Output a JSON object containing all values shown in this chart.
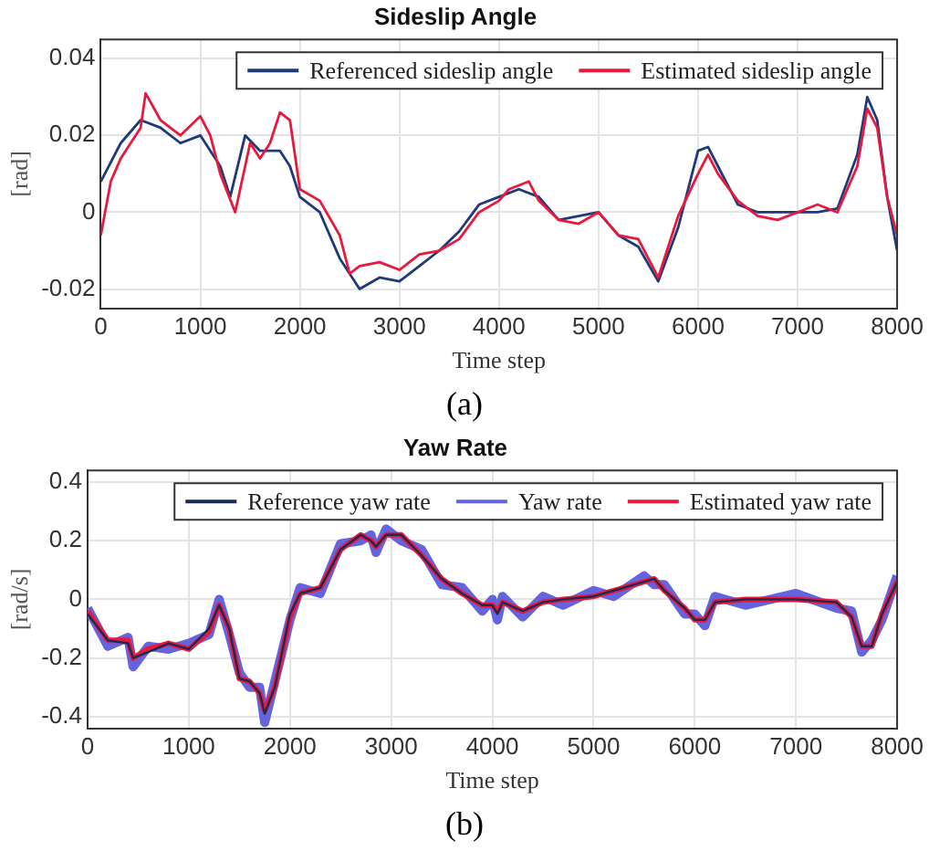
{
  "chart_data": [
    {
      "type": "line",
      "title": "Sideslip Angle",
      "xlabel": "Time step",
      "ylabel": "[rad]",
      "xlim": [
        0,
        8000
      ],
      "xticks": [
        0,
        1000,
        2000,
        3000,
        4000,
        5000,
        6000,
        7000,
        8000
      ],
      "ylim": [
        -0.025,
        0.045
      ],
      "yticks": [
        -0.02,
        0,
        0.02,
        0.04
      ],
      "grid": true,
      "legend": "top right",
      "line_style": "solid",
      "marker": "none",
      "annotations": [
        "(a)"
      ],
      "series": [
        {
          "name": "Referenced sideslip angle",
          "color": "#1f3a7a",
          "x": [
            0,
            200,
            400,
            600,
            800,
            1000,
            1200,
            1300,
            1450,
            1600,
            1800,
            1900,
            2000,
            2200,
            2400,
            2600,
            2800,
            3000,
            3200,
            3400,
            3600,
            3800,
            4000,
            4200,
            4400,
            4600,
            4800,
            5000,
            5200,
            5400,
            5600,
            5800,
            6000,
            6100,
            6200,
            6400,
            6600,
            6800,
            7000,
            7200,
            7400,
            7600,
            7700,
            7800,
            7900,
            8000
          ],
          "values": [
            0.008,
            0.018,
            0.024,
            0.022,
            0.018,
            0.02,
            0.012,
            0.004,
            0.02,
            0.016,
            0.016,
            0.012,
            0.004,
            0.0,
            -0.012,
            -0.02,
            -0.017,
            -0.018,
            -0.014,
            -0.01,
            -0.005,
            0.002,
            0.004,
            0.006,
            0.004,
            -0.002,
            -0.001,
            0.0,
            -0.006,
            -0.009,
            -0.018,
            -0.004,
            0.016,
            0.017,
            0.012,
            0.002,
            0.0,
            0.0,
            0.0,
            0.0,
            0.001,
            0.015,
            0.03,
            0.024,
            0.004,
            -0.01
          ]
        },
        {
          "name": "Estimated sideslip angle",
          "color": "#e8193c",
          "x": [
            0,
            100,
            200,
            400,
            450,
            600,
            800,
            1000,
            1100,
            1200,
            1350,
            1500,
            1600,
            1700,
            1800,
            1900,
            2000,
            2200,
            2400,
            2500,
            2600,
            2800,
            3000,
            3200,
            3400,
            3600,
            3800,
            4000,
            4100,
            4300,
            4400,
            4600,
            4800,
            5000,
            5200,
            5400,
            5600,
            5800,
            6000,
            6100,
            6200,
            6400,
            6600,
            6800,
            7000,
            7200,
            7400,
            7600,
            7700,
            7800,
            7900,
            8000
          ],
          "values": [
            -0.006,
            0.008,
            0.014,
            0.022,
            0.031,
            0.024,
            0.02,
            0.025,
            0.02,
            0.01,
            0.0,
            0.018,
            0.014,
            0.018,
            0.026,
            0.024,
            0.006,
            0.003,
            -0.006,
            -0.016,
            -0.014,
            -0.013,
            -0.015,
            -0.011,
            -0.01,
            -0.007,
            0.0,
            0.003,
            0.006,
            0.008,
            0.003,
            -0.002,
            -0.003,
            0.0,
            -0.006,
            -0.007,
            -0.017,
            -0.001,
            0.01,
            0.015,
            0.01,
            0.003,
            -0.001,
            -0.002,
            0.0,
            0.002,
            0.0,
            0.012,
            0.027,
            0.022,
            0.004,
            -0.006
          ]
        }
      ]
    },
    {
      "type": "line",
      "title": "Yaw Rate",
      "xlabel": "Time step",
      "ylabel": "[rad/s]",
      "xlim": [
        0,
        8000
      ],
      "xticks": [
        0,
        1000,
        2000,
        3000,
        4000,
        5000,
        6000,
        7000,
        8000
      ],
      "ylim": [
        -0.44,
        0.44
      ],
      "yticks": [
        -0.4,
        -0.2,
        0,
        0.2,
        0.4
      ],
      "grid": true,
      "legend": "top right",
      "line_style": "solid",
      "marker": "none",
      "annotations": [
        "(b)"
      ],
      "series": [
        {
          "name": "Reference yaw rate",
          "color": "#1a2a50",
          "x": [
            0,
            200,
            400,
            450,
            600,
            800,
            1000,
            1200,
            1300,
            1400,
            1500,
            1600,
            1700,
            1750,
            1850,
            2000,
            2100,
            2300,
            2500,
            2700,
            2800,
            2850,
            2950,
            3100,
            3300,
            3500,
            3700,
            3900,
            4000,
            4050,
            4100,
            4300,
            4500,
            4700,
            5000,
            5200,
            5500,
            5600,
            5700,
            5900,
            6000,
            6100,
            6200,
            6500,
            7000,
            7400,
            7550,
            7650,
            7750,
            7850,
            8000
          ],
          "values": [
            -0.05,
            -0.14,
            -0.15,
            -0.2,
            -0.18,
            -0.15,
            -0.17,
            -0.1,
            -0.02,
            -0.1,
            -0.27,
            -0.28,
            -0.32,
            -0.39,
            -0.3,
            -0.05,
            0.02,
            0.04,
            0.17,
            0.22,
            0.2,
            0.18,
            0.22,
            0.22,
            0.15,
            0.07,
            0.02,
            -0.02,
            -0.02,
            -0.05,
            -0.01,
            -0.04,
            -0.01,
            0.0,
            0.01,
            0.03,
            0.06,
            0.07,
            0.03,
            -0.03,
            -0.07,
            -0.07,
            -0.01,
            0.0,
            0.0,
            -0.01,
            -0.06,
            -0.16,
            -0.16,
            -0.05,
            0.06
          ]
        },
        {
          "name": "Yaw rate",
          "color": "#6464e0",
          "x": [
            0,
            200,
            400,
            450,
            600,
            800,
            1000,
            1200,
            1300,
            1400,
            1500,
            1600,
            1700,
            1750,
            1850,
            2000,
            2100,
            2300,
            2500,
            2700,
            2800,
            2850,
            2950,
            3100,
            3300,
            3500,
            3700,
            3900,
            4000,
            4050,
            4100,
            4300,
            4500,
            4700,
            5000,
            5200,
            5500,
            5600,
            5700,
            5900,
            6000,
            6100,
            6200,
            6500,
            7000,
            7400,
            7550,
            7650,
            7750,
            7850,
            8000
          ],
          "values": [
            -0.03,
            -0.16,
            -0.13,
            -0.23,
            -0.16,
            -0.17,
            -0.15,
            -0.12,
            0.0,
            -0.12,
            -0.25,
            -0.3,
            -0.3,
            -0.42,
            -0.28,
            -0.07,
            0.04,
            0.02,
            0.19,
            0.2,
            0.22,
            0.16,
            0.24,
            0.2,
            0.17,
            0.05,
            0.04,
            -0.04,
            0.0,
            -0.07,
            0.01,
            -0.06,
            0.01,
            -0.02,
            0.03,
            0.01,
            0.08,
            0.05,
            0.05,
            -0.05,
            -0.05,
            -0.09,
            0.01,
            -0.02,
            0.02,
            -0.03,
            -0.04,
            -0.18,
            -0.14,
            -0.07,
            0.08
          ]
        },
        {
          "name": "Estimated yaw rate",
          "color": "#e8193c",
          "x": [
            0,
            200,
            400,
            450,
            600,
            800,
            1000,
            1200,
            1300,
            1400,
            1500,
            1600,
            1700,
            1750,
            1850,
            2000,
            2100,
            2300,
            2500,
            2700,
            2800,
            2850,
            2950,
            3100,
            3300,
            3500,
            3700,
            3900,
            4000,
            4050,
            4100,
            4300,
            4500,
            4700,
            5000,
            5200,
            5500,
            5600,
            5700,
            5900,
            6000,
            6100,
            6200,
            6500,
            7000,
            7400,
            7550,
            7650,
            7750,
            7850,
            8000
          ],
          "values": [
            -0.04,
            -0.14,
            -0.14,
            -0.2,
            -0.17,
            -0.15,
            -0.17,
            -0.11,
            -0.02,
            -0.1,
            -0.27,
            -0.28,
            -0.32,
            -0.38,
            -0.3,
            -0.06,
            0.02,
            0.04,
            0.17,
            0.22,
            0.2,
            0.18,
            0.22,
            0.22,
            0.15,
            0.07,
            0.02,
            -0.02,
            -0.02,
            -0.04,
            -0.01,
            -0.04,
            -0.01,
            0.0,
            0.01,
            0.03,
            0.06,
            0.07,
            0.03,
            -0.03,
            -0.07,
            -0.07,
            -0.01,
            0.0,
            0.0,
            -0.01,
            -0.06,
            -0.16,
            -0.16,
            -0.05,
            0.06
          ]
        }
      ]
    }
  ]
}
